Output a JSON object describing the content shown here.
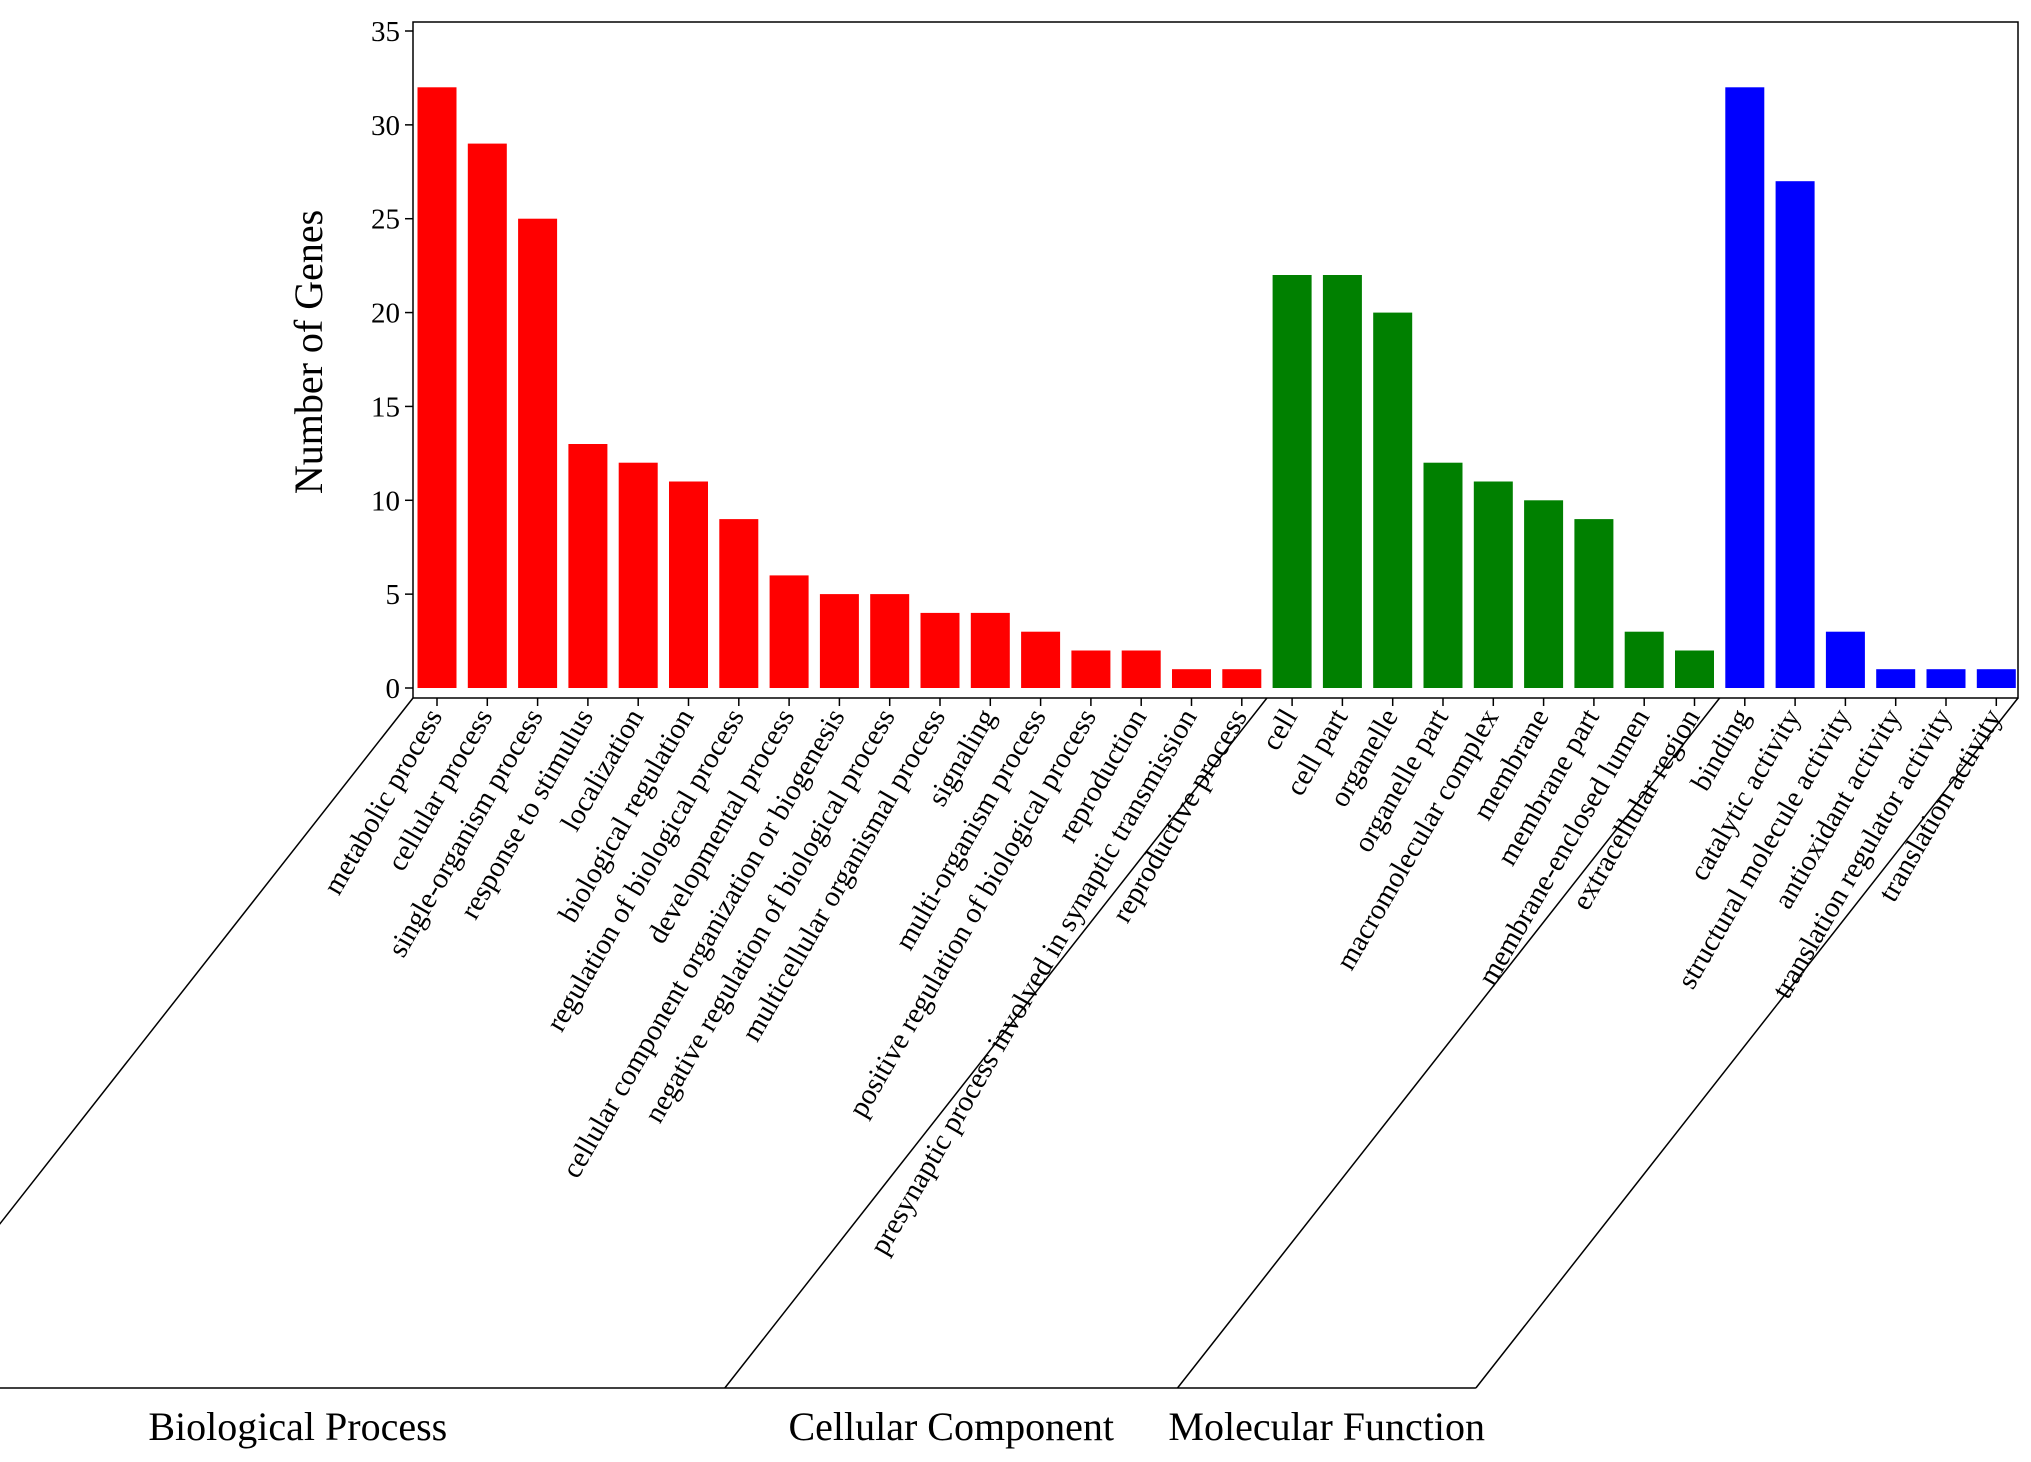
{
  "chart_data": {
    "type": "bar",
    "title": "",
    "xlabel": "",
    "ylabel": "Number of Genes",
    "ylim": [
      0,
      35
    ],
    "yticks": [
      0,
      5,
      10,
      15,
      20,
      25,
      30,
      35
    ],
    "grid": false,
    "legend": "none",
    "groups": [
      {
        "name": "Biological Process",
        "color": "#ff0000",
        "categories": [
          "metabolic process",
          "cellular process",
          "single-organism process",
          "response to stimulus",
          "localization",
          "biological regulation",
          "regulation of biological process",
          "developmental process",
          "cellular component organization or biogenesis",
          "negative regulation of biological process",
          "multicellular organismal process",
          "signaling",
          "multi-organism process",
          "positive regulation of biological process",
          "reproduction",
          "presynaptic process involved in synaptic transmission",
          "reproductive process"
        ],
        "values": [
          32,
          29,
          25,
          13,
          12,
          11,
          9,
          6,
          5,
          5,
          4,
          4,
          3,
          2,
          2,
          1,
          1
        ]
      },
      {
        "name": "Cellular Component",
        "color": "#008000",
        "categories": [
          "cell",
          "cell part",
          "organelle",
          "organelle part",
          "macromolecular complex",
          "membrane",
          "membrane part",
          "membrane-enclosed lumen",
          "extracellular region"
        ],
        "values": [
          22,
          22,
          20,
          12,
          11,
          10,
          9,
          3,
          2
        ]
      },
      {
        "name": "Molecular Function",
        "color": "#0000ff",
        "categories": [
          "binding",
          "catalytic activity",
          "structural molecule activity",
          "antioxidant activity",
          "translation regulator activity",
          "translation activity"
        ],
        "values": [
          32,
          27,
          3,
          1,
          1,
          1
        ]
      }
    ]
  }
}
